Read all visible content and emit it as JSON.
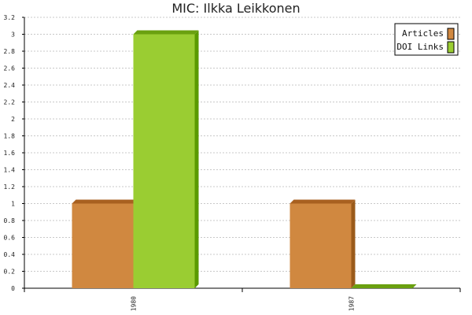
{
  "chart_data": {
    "type": "bar",
    "title": "MIC: Ilkka Leikkonen",
    "categories": [
      "1980",
      "1987"
    ],
    "series": [
      {
        "name": "Articles",
        "values": [
          1,
          1
        ],
        "color": "#d08840",
        "shade": "#9a5a1a",
        "top": "#a86020"
      },
      {
        "name": "DOI Links",
        "values": [
          3,
          0
        ],
        "color": "#9acd32",
        "shade": "#5a9a00",
        "top": "#6aa010"
      }
    ],
    "ylim": [
      0,
      3.2
    ],
    "yticks": [
      "0",
      "0.2",
      "0.4",
      "0.6",
      "0.8",
      "1",
      "1.2",
      "1.4",
      "1.6",
      "1.8",
      "2",
      "2.2",
      "2.4",
      "2.6",
      "2.8",
      "3",
      "3.2"
    ],
    "xlabel": "",
    "ylabel": "",
    "grid": true,
    "legend_position": "top-right"
  }
}
